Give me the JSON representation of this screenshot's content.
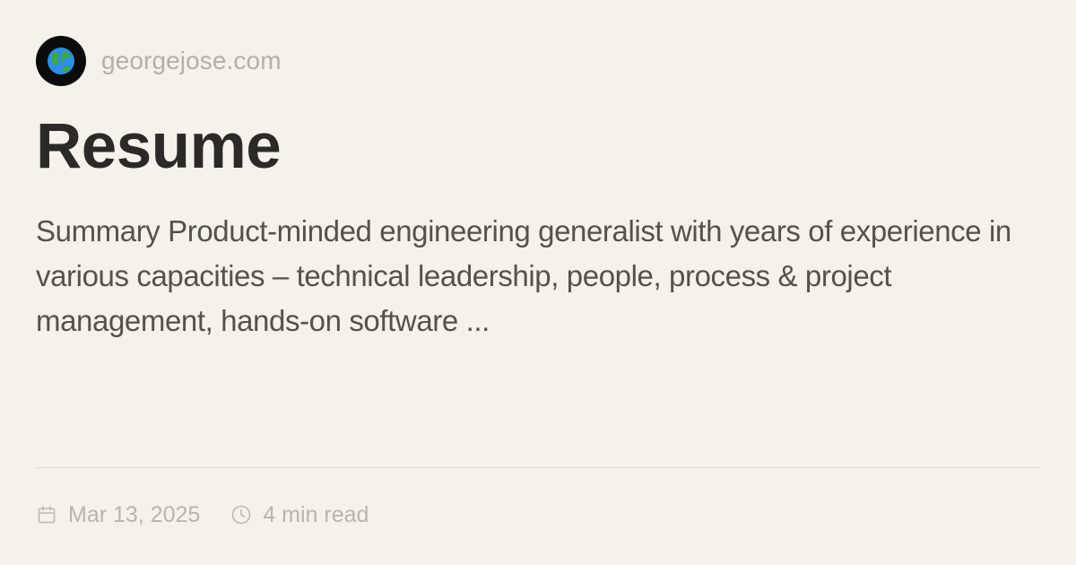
{
  "site": {
    "name": "georgejose.com",
    "avatar_icon": "globe-icon"
  },
  "post": {
    "title": "Resume",
    "summary": "Summary Product-minded engineering generalist with years of experience in various capacities – technical leadership, people, process & project management, hands-on software ...",
    "date": "Mar 13, 2025",
    "read_time": "4 min read"
  },
  "icons": {
    "date": "calendar-icon",
    "read_time": "clock-icon"
  },
  "colors": {
    "background": "#f5f2eb",
    "title": "#2b2a28",
    "summary": "#55524d",
    "muted": "#b8b5ae"
  }
}
